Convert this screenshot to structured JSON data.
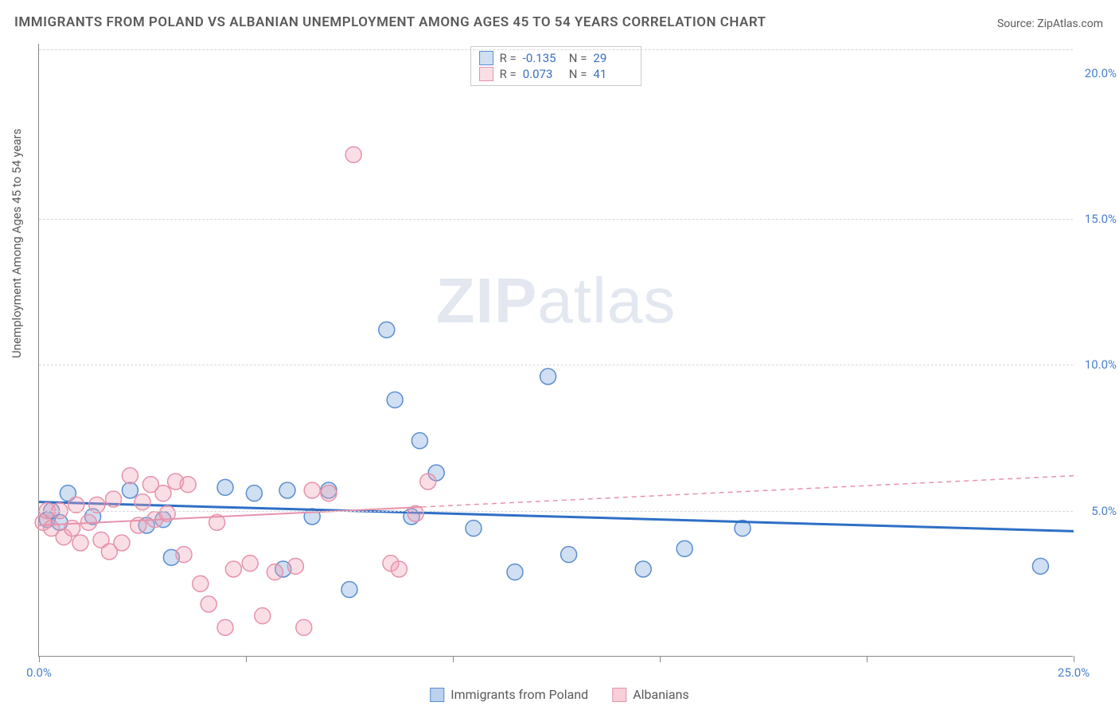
{
  "title": "IMMIGRANTS FROM POLAND VS ALBANIAN UNEMPLOYMENT AMONG AGES 45 TO 54 YEARS CORRELATION CHART",
  "source": "Source: ZipAtlas.com",
  "y_axis_label": "Unemployment Among Ages 45 to 54 years",
  "watermark_bold": "ZIP",
  "watermark_rest": "atlas",
  "chart": {
    "type": "scatter",
    "xlim": [
      0,
      25
    ],
    "ylim": [
      0,
      21
    ],
    "x_ticks": [
      0,
      5,
      10,
      15,
      20,
      25
    ],
    "x_tick_labels": [
      "0.0%",
      "",
      "",
      "",
      "",
      "25.0%"
    ],
    "y_ticks": [
      5,
      10,
      15,
      20
    ],
    "y_tick_labels": [
      "5.0%",
      "10.0%",
      "15.0%",
      "20.0%"
    ],
    "y_grid_at": [
      5,
      10,
      15,
      20.8
    ],
    "background_color": "#ffffff",
    "grid_color": "#d8d8d8",
    "marker_radius": 10,
    "series": [
      {
        "name": "Immigrants from Poland",
        "color_fill": "rgba(120,163,219,0.35)",
        "color_stroke": "#5b8ed0",
        "trend_color": "#2f6fc6",
        "trend_style": "solid",
        "trend_start_y": 5.3,
        "trend_end_y": 4.3,
        "R": "-0.135",
        "N": "29",
        "points": [
          [
            0.2,
            4.7
          ],
          [
            0.3,
            5.0
          ],
          [
            0.5,
            4.6
          ],
          [
            0.7,
            5.6
          ],
          [
            1.3,
            4.8
          ],
          [
            2.2,
            5.7
          ],
          [
            2.6,
            4.5
          ],
          [
            3.0,
            4.7
          ],
          [
            3.2,
            3.4
          ],
          [
            4.5,
            5.8
          ],
          [
            5.2,
            5.6
          ],
          [
            5.9,
            3.0
          ],
          [
            6.0,
            5.7
          ],
          [
            6.6,
            4.8
          ],
          [
            7.0,
            5.7
          ],
          [
            7.5,
            2.3
          ],
          [
            8.4,
            11.2
          ],
          [
            8.6,
            8.8
          ],
          [
            9.0,
            4.8
          ],
          [
            9.2,
            7.4
          ],
          [
            9.6,
            6.3
          ],
          [
            10.5,
            4.4
          ],
          [
            11.5,
            2.9
          ],
          [
            12.3,
            9.6
          ],
          [
            12.8,
            3.5
          ],
          [
            14.6,
            3.0
          ],
          [
            15.6,
            3.7
          ],
          [
            17.0,
            4.4
          ],
          [
            24.2,
            3.1
          ]
        ]
      },
      {
        "name": "Albanians",
        "color_fill": "rgba(240,160,180,0.35)",
        "color_stroke": "#e692ab",
        "trend_color": "#e692ab",
        "trend_style": "half_dashed",
        "trend_start_y": 4.5,
        "trend_end_y": 6.2,
        "R": "0.073",
        "N": "41",
        "points": [
          [
            0.1,
            4.6
          ],
          [
            0.2,
            5.0
          ],
          [
            0.3,
            4.4
          ],
          [
            0.5,
            5.0
          ],
          [
            0.6,
            4.1
          ],
          [
            0.8,
            4.4
          ],
          [
            0.9,
            5.2
          ],
          [
            1.0,
            3.9
          ],
          [
            1.2,
            4.6
          ],
          [
            1.4,
            5.2
          ],
          [
            1.5,
            4.0
          ],
          [
            1.7,
            3.6
          ],
          [
            1.8,
            5.4
          ],
          [
            2.0,
            3.9
          ],
          [
            2.2,
            6.2
          ],
          [
            2.4,
            4.5
          ],
          [
            2.5,
            5.3
          ],
          [
            2.7,
            5.9
          ],
          [
            2.8,
            4.7
          ],
          [
            3.0,
            5.6
          ],
          [
            3.1,
            4.9
          ],
          [
            3.3,
            6.0
          ],
          [
            3.5,
            3.5
          ],
          [
            3.6,
            5.9
          ],
          [
            3.9,
            2.5
          ],
          [
            4.1,
            1.8
          ],
          [
            4.3,
            4.6
          ],
          [
            4.5,
            1.0
          ],
          [
            4.7,
            3.0
          ],
          [
            5.1,
            3.2
          ],
          [
            5.4,
            1.4
          ],
          [
            5.7,
            2.9
          ],
          [
            6.2,
            3.1
          ],
          [
            6.4,
            1.0
          ],
          [
            6.6,
            5.7
          ],
          [
            7.0,
            5.6
          ],
          [
            7.6,
            17.2
          ],
          [
            8.5,
            3.2
          ],
          [
            8.7,
            3.0
          ],
          [
            9.1,
            4.9
          ],
          [
            9.4,
            6.0
          ]
        ]
      }
    ],
    "stats_legend_labels": {
      "R": "R =",
      "N": "N ="
    },
    "bottom_legend": [
      {
        "label": "Immigrants from Poland",
        "fill": "rgba(120,163,219,0.5)",
        "stroke": "#5b8ed0"
      },
      {
        "label": "Albanians",
        "fill": "rgba(240,160,180,0.5)",
        "stroke": "#e692ab"
      }
    ]
  }
}
